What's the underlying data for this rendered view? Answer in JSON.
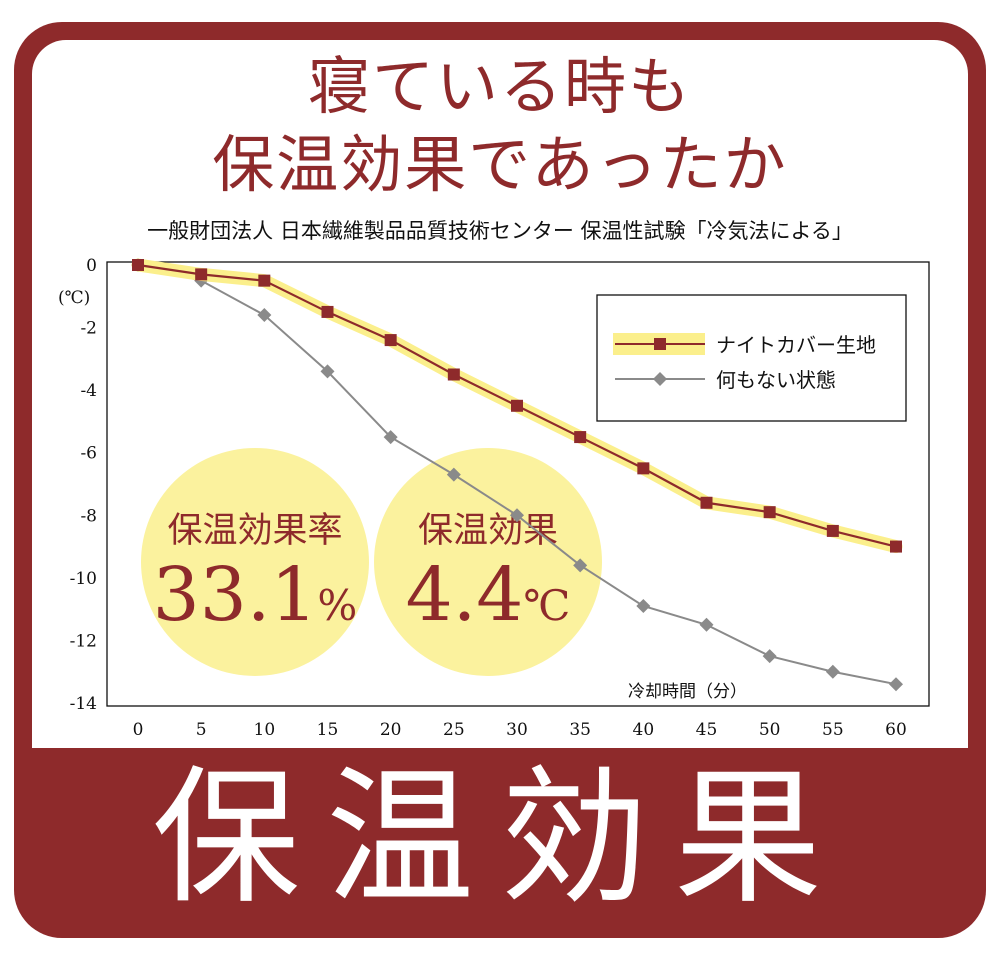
{
  "header": {
    "line1": "寝ている時も",
    "line2": "保温効果であったか",
    "source": "一般財団法人 日本繊維製品品質技術センター 保温性試験「冷気法による」"
  },
  "footer": {
    "title": "保温効果"
  },
  "badges": [
    {
      "label": "保温効果率",
      "value": "33.1",
      "unit": "%"
    },
    {
      "label": "保温効果",
      "value": "4.4",
      "unit": "℃"
    }
  ],
  "colors": {
    "brand": "#8e2a2b",
    "series_fabric": "#8e2a2b",
    "series_fabric_glow": "#fbef8c",
    "series_none": "#8a8a8a",
    "badge_fill": "#fbf29e"
  },
  "chart_data": {
    "type": "line",
    "x": [
      0,
      5,
      10,
      15,
      20,
      25,
      30,
      35,
      40,
      45,
      50,
      55,
      60
    ],
    "xlabel": "冷却時間（分）",
    "ylabel": "(℃)",
    "xlim": [
      0,
      60
    ],
    "ylim": [
      -14,
      0
    ],
    "xticks": [
      "0",
      "5",
      "10",
      "15",
      "20",
      "25",
      "30",
      "35",
      "40",
      "45",
      "50",
      "55",
      "60"
    ],
    "yticks": [
      "0",
      "-2",
      "-4",
      "-6",
      "-8",
      "-10",
      "-12",
      "-14"
    ],
    "grid": false,
    "legend_position": "top-right",
    "series": [
      {
        "name": "ナイトカバー生地",
        "marker": "square",
        "values": [
          0,
          -0.3,
          -0.5,
          -1.5,
          -2.4,
          -3.5,
          -4.5,
          -5.5,
          -6.5,
          -7.6,
          -7.9,
          -8.5,
          -9.0
        ]
      },
      {
        "name": "何もない状態",
        "marker": "diamond",
        "values": [
          0,
          -0.5,
          -1.6,
          -3.4,
          -5.5,
          -6.7,
          -8.0,
          -9.6,
          -10.9,
          -11.5,
          -12.5,
          -13.0,
          -13.4
        ]
      }
    ]
  }
}
